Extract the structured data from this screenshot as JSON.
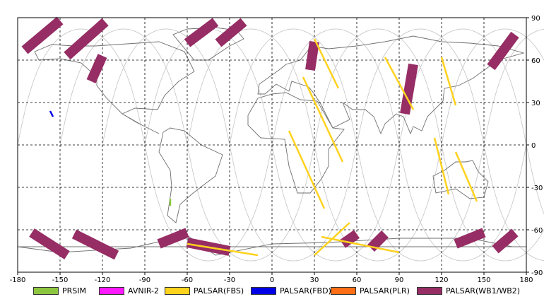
{
  "map": {
    "x_ticks": [
      "-180",
      "-150",
      "-120",
      "-90",
      "-60",
      "-30",
      "0",
      "30",
      "60",
      "90",
      "120",
      "150",
      "180"
    ],
    "y_ticks": [
      "90",
      "60",
      "30",
      "0",
      "-30",
      "-60",
      "-90"
    ]
  },
  "legend": {
    "items": [
      {
        "label": "PRSIM",
        "color": "#8cc63f"
      },
      {
        "label": "AVNIR-2",
        "color": "#ff19ff"
      },
      {
        "label": "PALSAR(FBS)",
        "color": "#ffd21e"
      },
      {
        "label": "PALSAR(FBD)",
        "color": "#0000e6"
      },
      {
        "label": "PALSAR(PLR)",
        "color": "#ff6e14"
      },
      {
        "label": "PALSAR(WB1/WB2)",
        "color": "#962d64"
      }
    ]
  },
  "chart_data": {
    "type": "scatter",
    "title": "",
    "xlabel": "",
    "ylabel": "",
    "xlim": [
      -180,
      180
    ],
    "ylim": [
      -90,
      90
    ],
    "grid": true,
    "legend_position": "bottom",
    "series": [
      {
        "name": "PALSAR(WB1/WB2)",
        "swaths": [
          {
            "lat": [
              88,
              67
            ],
            "lon": [
              -150,
              -175
            ]
          },
          {
            "lat": [
              87,
              63
            ],
            "lon": [
              -118,
              -145
            ]
          },
          {
            "lat": [
              87,
              72
            ],
            "lon": [
              -40,
              -60
            ]
          },
          {
            "lat": [
              87,
              72
            ],
            "lon": [
              -20,
              -38
            ]
          },
          {
            "lat": [
              63,
              45
            ],
            "lon": [
              -120,
              -128
            ]
          },
          {
            "lat": [
              73,
              53
            ],
            "lon": [
              30,
              27
            ]
          },
          {
            "lat": [
              57,
              22
            ],
            "lon": [
              100,
              94
            ]
          },
          {
            "lat": [
              78,
              55
            ],
            "lon": [
              172,
              155
            ]
          },
          {
            "lat": [
              -62,
              -78
            ],
            "lon": [
              -170,
              -145
            ]
          },
          {
            "lat": [
              -63,
              -78
            ],
            "lon": [
              -140,
              -110
            ]
          },
          {
            "lat": [
              -62,
              -70
            ],
            "lon": [
              -60,
              -80
            ]
          },
          {
            "lat": [
              -69,
              -75
            ],
            "lon": [
              -60,
              -30
            ]
          },
          {
            "lat": [
              -63,
              -70
            ],
            "lon": [
              60,
              50
            ]
          },
          {
            "lat": [
              -63,
              -73
            ],
            "lon": [
              80,
              70
            ]
          },
          {
            "lat": [
              -62,
              -70
            ],
            "lon": [
              150,
              130
            ]
          },
          {
            "lat": [
              -62,
              -74
            ],
            "lon": [
              172,
              158
            ]
          }
        ]
      },
      {
        "name": "PALSAR(FBS)",
        "swaths": [
          {
            "lat": [
              75,
              40
            ],
            "lon": [
              30,
              47
            ]
          },
          {
            "lat": [
              48,
              -12
            ],
            "lon": [
              22,
              50
            ]
          },
          {
            "lat": [
              10,
              -45
            ],
            "lon": [
              12,
              37
            ]
          },
          {
            "lat": [
              62,
              25
            ],
            "lon": [
              80,
              100
            ]
          },
          {
            "lat": [
              62,
              28
            ],
            "lon": [
              120,
              130
            ]
          },
          {
            "lat": [
              5,
              -35
            ],
            "lon": [
              115,
              125
            ]
          },
          {
            "lat": [
              -5,
              -40
            ],
            "lon": [
              130,
              145
            ]
          },
          {
            "lat": [
              -55,
              -78
            ],
            "lon": [
              55,
              30
            ]
          },
          {
            "lat": [
              -70,
              -78
            ],
            "lon": [
              -60,
              -10
            ]
          },
          {
            "lat": [
              -65,
              -76
            ],
            "lon": [
              35,
              90
            ]
          }
        ]
      },
      {
        "name": "PALSAR(FBD)",
        "swaths": [
          {
            "lat": [
              24,
              20
            ],
            "lon": [
              -157,
              -155
            ]
          }
        ]
      },
      {
        "name": "PRSIM",
        "swaths": [
          {
            "lat": [
              -38,
              -43
            ],
            "lon": [
              -72,
              -72
            ]
          }
        ]
      }
    ]
  }
}
